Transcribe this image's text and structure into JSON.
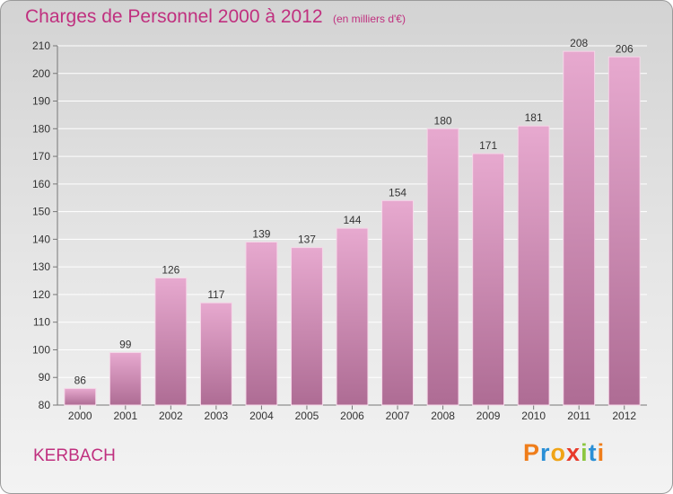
{
  "header": {
    "title": "Charges de Personnel 2000 à 2012",
    "subtitle": "(en milliers d'€)"
  },
  "footer": {
    "commune": "KERBACH",
    "logo_text": "Proxiti"
  },
  "colors": {
    "title": "#c0307f",
    "bar_top": "#e7a9cf",
    "bar_bottom": "#ae6c94",
    "logo_letters": [
      "#ef7d1a",
      "#2a8fd6",
      "#f0a416",
      "#e83a2a",
      "#8cc63f",
      "#2a8fd6",
      "#ef7d1a"
    ]
  },
  "chart_data": {
    "type": "bar",
    "categories": [
      "2000",
      "2001",
      "2002",
      "2003",
      "2004",
      "2005",
      "2006",
      "2007",
      "2008",
      "2009",
      "2010",
      "2011",
      "2012"
    ],
    "values": [
      86,
      99,
      126,
      117,
      139,
      137,
      144,
      154,
      180,
      171,
      181,
      208,
      206
    ],
    "ylim": [
      80,
      210
    ],
    "yticks": [
      80,
      90,
      100,
      110,
      120,
      130,
      140,
      150,
      160,
      170,
      180,
      190,
      200,
      210
    ],
    "grid": true,
    "legend": "none"
  }
}
